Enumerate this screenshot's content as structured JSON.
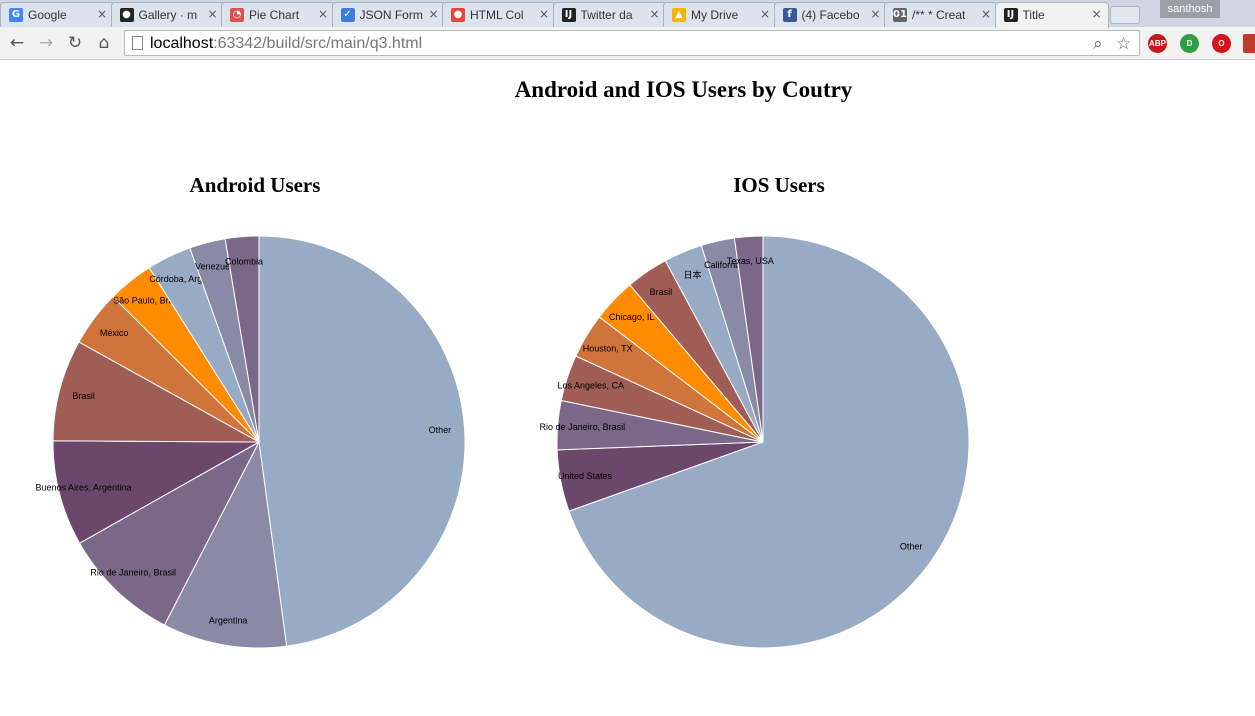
{
  "browser": {
    "tabs": [
      {
        "label": "Google",
        "icon": "google-icon",
        "color": "#4285f4",
        "glyph": "G"
      },
      {
        "label": "Gallery · m",
        "icon": "github-icon",
        "color": "#222222",
        "glyph": "●"
      },
      {
        "label": "Pie Chart",
        "icon": "pie-chart-icon",
        "color": "#d9534f",
        "glyph": "◔"
      },
      {
        "label": "JSON Form",
        "icon": "checkbox-icon",
        "color": "#3b7dd8",
        "glyph": "✓"
      },
      {
        "label": "HTML Col",
        "icon": "color-picker-icon",
        "color": "#e8453c",
        "glyph": "●"
      },
      {
        "label": "Twitter da",
        "icon": "intellij-icon",
        "color": "#222222",
        "glyph": "IJ"
      },
      {
        "label": "My Drive",
        "icon": "google-drive-icon",
        "color": "#f4b400",
        "glyph": "▲"
      },
      {
        "label": "(4) Facebo",
        "icon": "facebook-icon",
        "color": "#3b5998",
        "glyph": "f"
      },
      {
        "label": "/** * Creat",
        "icon": "binary-file-icon",
        "color": "#666666",
        "glyph": "01"
      },
      {
        "label": "Title",
        "icon": "intellij-icon",
        "color": "#222222",
        "glyph": "IJ",
        "active": true
      }
    ],
    "close_glyph": "×",
    "profile_name": "santhosh",
    "url_host": "localhost",
    "url_rest": ":63342/build/src/main/q3.html"
  },
  "page": {
    "title": "Android and IOS Users by Coutry"
  },
  "chart_data": [
    {
      "type": "pie",
      "title": "Android Users",
      "categories": [
        "Other",
        "Argentina",
        "Rio de Janeiro, Brasil",
        "Buenos Aires, Argentina",
        "Brasil",
        "México",
        "São Paulo, Brasil",
        "Córdoba, Argentina",
        "Venezuela",
        "Colombia"
      ],
      "values": [
        49.2,
        10.0,
        9.5,
        8.5,
        8.2,
        4.5,
        3.7,
        3.6,
        2.9,
        2.7
      ],
      "colors": [
        "#98abc5",
        "#8a89a6",
        "#7b6888",
        "#6b486b",
        "#a05d56",
        "#d0743c",
        "#ff8c00",
        "#98abc5",
        "#8a89a6",
        "#7b6888"
      ],
      "display_labels": [
        "Other",
        "Argentina",
        "Rio de Janeiro, Brasil",
        "Buenos Aires, Argentina",
        "Brasil",
        "México",
        "São Paulo, Bras",
        "Córdoba, Arger",
        "Venezuel",
        "Colombia"
      ]
    },
    {
      "type": "pie",
      "title": "IOS Users",
      "categories": [
        "Other",
        "United States",
        "Rio de Janeiro, Brasil",
        "Los Angeles, CA",
        "Houston, TX",
        "Chicago, IL",
        "Brasil",
        "日本",
        "California",
        "Texas, USA"
      ],
      "values": [
        69.0,
        4.8,
        3.8,
        3.6,
        3.5,
        3.4,
        3.3,
        3.0,
        2.6,
        2.2
      ],
      "colors": [
        "#98abc5",
        "#6b486b",
        "#7b6888",
        "#a05d56",
        "#d0743c",
        "#ff8c00",
        "#a05d56",
        "#98abc5",
        "#8a89a6",
        "#7b6888"
      ],
      "display_labels": [
        "Other",
        "United States",
        "Rio de Janeiro, Brasil",
        "Los Angeles, CA",
        "Houston, TX",
        "Chicago, IL",
        "Brasil",
        "日本",
        "California",
        "Texas, USA"
      ]
    }
  ]
}
